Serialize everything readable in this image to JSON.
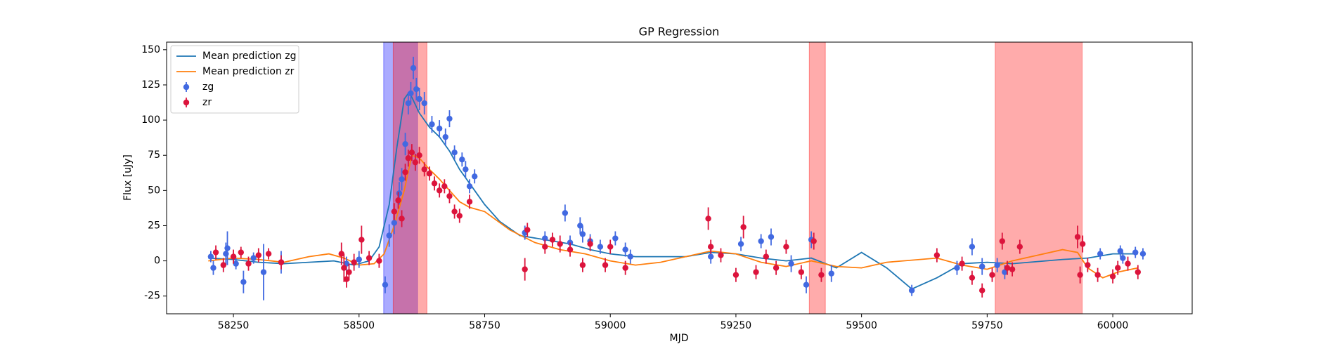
{
  "chart_data": {
    "type": "errorbar-line",
    "title": "GP Regression",
    "x_label": "MJD",
    "y_label": "Flux [uJy]",
    "xlim": [
      58117,
      60158
    ],
    "ylim": [
      -37.6,
      155.4
    ],
    "xticks": [
      58250,
      58500,
      58750,
      59000,
      59250,
      59500,
      59750,
      60000
    ],
    "yticks": [
      -25,
      0,
      25,
      50,
      75,
      100,
      125,
      150
    ],
    "legend": "upper left",
    "spans": [
      {
        "xmin": 58549,
        "xmax": 58616,
        "color": "#0000ff"
      },
      {
        "xmin": 58568,
        "xmax": 58635,
        "color": "#ff0000"
      },
      {
        "xmin": 59396,
        "xmax": 59428,
        "color": "#ff0000"
      },
      {
        "xmin": 59766,
        "xmax": 59939,
        "color": "#ff0000"
      }
    ],
    "series": [
      {
        "name": "Mean prediction zg",
        "kind": "line",
        "color": "#1f77b4",
        "x": [
          58200,
          58250,
          58300,
          58350,
          58400,
          58450,
          58490,
          58520,
          58540,
          58560,
          58575,
          58590,
          58600,
          58620,
          58640,
          58660,
          58680,
          58700,
          58720,
          58750,
          58780,
          58820,
          58870,
          58920,
          58960,
          59000,
          59050,
          59150,
          59200,
          59250,
          59300,
          59350,
          59400,
          59450,
          59500,
          59550,
          59600,
          59650,
          59700,
          59750,
          59800,
          59900,
          59950,
          60000,
          60050
        ],
        "values": [
          2,
          1,
          -1,
          -2,
          -1,
          0,
          -3,
          0,
          10,
          40,
          80,
          115,
          120,
          105,
          95,
          88,
          78,
          65,
          55,
          40,
          28,
          18,
          15,
          12,
          8,
          5,
          3,
          3,
          6,
          5,
          2,
          0,
          2,
          -5,
          6,
          -5,
          -20,
          -12,
          -2,
          -1,
          -2,
          1,
          2,
          5,
          5
        ]
      },
      {
        "name": "Mean prediction zr",
        "kind": "line",
        "color": "#ff7f0e",
        "x": [
          58200,
          58250,
          58300,
          58350,
          58400,
          58440,
          58470,
          58500,
          58530,
          58550,
          58570,
          58590,
          58605,
          58620,
          58640,
          58660,
          58680,
          58700,
          58720,
          58750,
          58800,
          58850,
          58900,
          58950,
          59000,
          59050,
          59100,
          59200,
          59250,
          59300,
          59350,
          59400,
          59450,
          59500,
          59550,
          59650,
          59700,
          59750,
          59800,
          59850,
          59900,
          59930,
          59950,
          59980,
          60010,
          60050
        ],
        "values": [
          0,
          2,
          1,
          -1,
          3,
          5,
          2,
          -3,
          -2,
          5,
          25,
          50,
          75,
          73,
          65,
          58,
          50,
          42,
          38,
          35,
          22,
          13,
          8,
          5,
          0,
          -3,
          -1,
          7,
          5,
          -1,
          -4,
          0,
          -4,
          -5,
          -1,
          2,
          -3,
          -6,
          0,
          4,
          8,
          6,
          -5,
          -12,
          -8,
          -5
        ]
      },
      {
        "name": "zg",
        "kind": "errorbar",
        "color": "#4169e1",
        "x": [
          58205,
          58210,
          58235,
          58238,
          58255,
          58270,
          58290,
          58310,
          58345,
          58475,
          58500,
          58552,
          58560,
          58570,
          58580,
          58585,
          58592,
          58598,
          58603,
          58608,
          58614,
          58620,
          58630,
          58645,
          58660,
          58672,
          58680,
          58690,
          58705,
          58712,
          58720,
          58730,
          58830,
          58870,
          58910,
          58920,
          58940,
          58945,
          58960,
          58980,
          59010,
          59030,
          59040,
          59200,
          59260,
          59300,
          59320,
          59360,
          59390,
          59400,
          59440,
          59600,
          59690,
          59720,
          59740,
          59770,
          59785,
          59975,
          60015,
          60020,
          60045,
          60060
        ],
        "values": [
          3,
          -5,
          5,
          9,
          -2,
          -15,
          2,
          -8,
          -1,
          -2,
          1,
          -17,
          18,
          27,
          48,
          58,
          83,
          112,
          119,
          137,
          122,
          115,
          112,
          97,
          94,
          88,
          101,
          77,
          72,
          65,
          53,
          60,
          20,
          16,
          34,
          13,
          25,
          19,
          14,
          10,
          16,
          8,
          3,
          3,
          12,
          14,
          17,
          -2,
          -17,
          15,
          -9,
          -21,
          -5,
          10,
          -4,
          -3,
          -8,
          5,
          7,
          2,
          6,
          5
        ],
        "errors": [
          4,
          5,
          8,
          12,
          4,
          8,
          4,
          20,
          8,
          5,
          6,
          6,
          8,
          8,
          8,
          8,
          8,
          8,
          8,
          8,
          8,
          8,
          8,
          6,
          6,
          6,
          6,
          5,
          5,
          6,
          5,
          5,
          5,
          5,
          6,
          5,
          6,
          6,
          5,
          5,
          5,
          5,
          5,
          5,
          5,
          5,
          6,
          6,
          6,
          6,
          6,
          4,
          5,
          6,
          6,
          5,
          5,
          4,
          4,
          4,
          4,
          4
        ]
      },
      {
        "name": "zr",
        "kind": "errorbar",
        "color": "#dc143c",
        "x": [
          58215,
          58230,
          58250,
          58265,
          58280,
          58300,
          58320,
          58345,
          58465,
          58470,
          58475,
          58480,
          58490,
          58505,
          58520,
          58540,
          58570,
          58578,
          58585,
          58592,
          58598,
          58605,
          58612,
          58620,
          58630,
          58640,
          58650,
          58660,
          58670,
          58680,
          58690,
          58700,
          58720,
          58830,
          58835,
          58870,
          58885,
          58900,
          58920,
          58945,
          58960,
          58990,
          59000,
          59030,
          59195,
          59200,
          59220,
          59250,
          59265,
          59290,
          59310,
          59330,
          59350,
          59380,
          59405,
          59420,
          59650,
          59700,
          59720,
          59740,
          59760,
          59780,
          59790,
          59800,
          59815,
          59930,
          59935,
          59940,
          59950,
          59970,
          60000,
          60010,
          60030,
          60050
        ],
        "values": [
          6,
          -3,
          3,
          6,
          -2,
          4,
          5,
          -1,
          5,
          -5,
          -13,
          -8,
          -1,
          15,
          2,
          0,
          35,
          43,
          30,
          63,
          73,
          77,
          70,
          75,
          65,
          62,
          55,
          50,
          53,
          46,
          35,
          32,
          42,
          -6,
          22,
          10,
          15,
          12,
          8,
          -3,
          12,
          -3,
          10,
          -5,
          30,
          10,
          4,
          -10,
          24,
          -8,
          3,
          -5,
          10,
          -8,
          14,
          -10,
          4,
          -2,
          -12,
          -21,
          -10,
          14,
          -5,
          -6,
          10,
          17,
          -10,
          12,
          -3,
          -10,
          -11,
          -5,
          -2,
          -8
        ],
        "errors": [
          5,
          5,
          5,
          4,
          5,
          5,
          4,
          5,
          8,
          10,
          6,
          6,
          6,
          10,
          5,
          5,
          6,
          6,
          6,
          6,
          6,
          6,
          6,
          6,
          5,
          5,
          5,
          5,
          5,
          5,
          5,
          5,
          5,
          8,
          5,
          5,
          5,
          6,
          5,
          5,
          5,
          5,
          5,
          5,
          8,
          5,
          5,
          5,
          8,
          5,
          5,
          5,
          5,
          5,
          6,
          5,
          5,
          5,
          5,
          5,
          5,
          6,
          5,
          5,
          5,
          8,
          6,
          6,
          5,
          5,
          5,
          5,
          5,
          5
        ]
      }
    ]
  }
}
